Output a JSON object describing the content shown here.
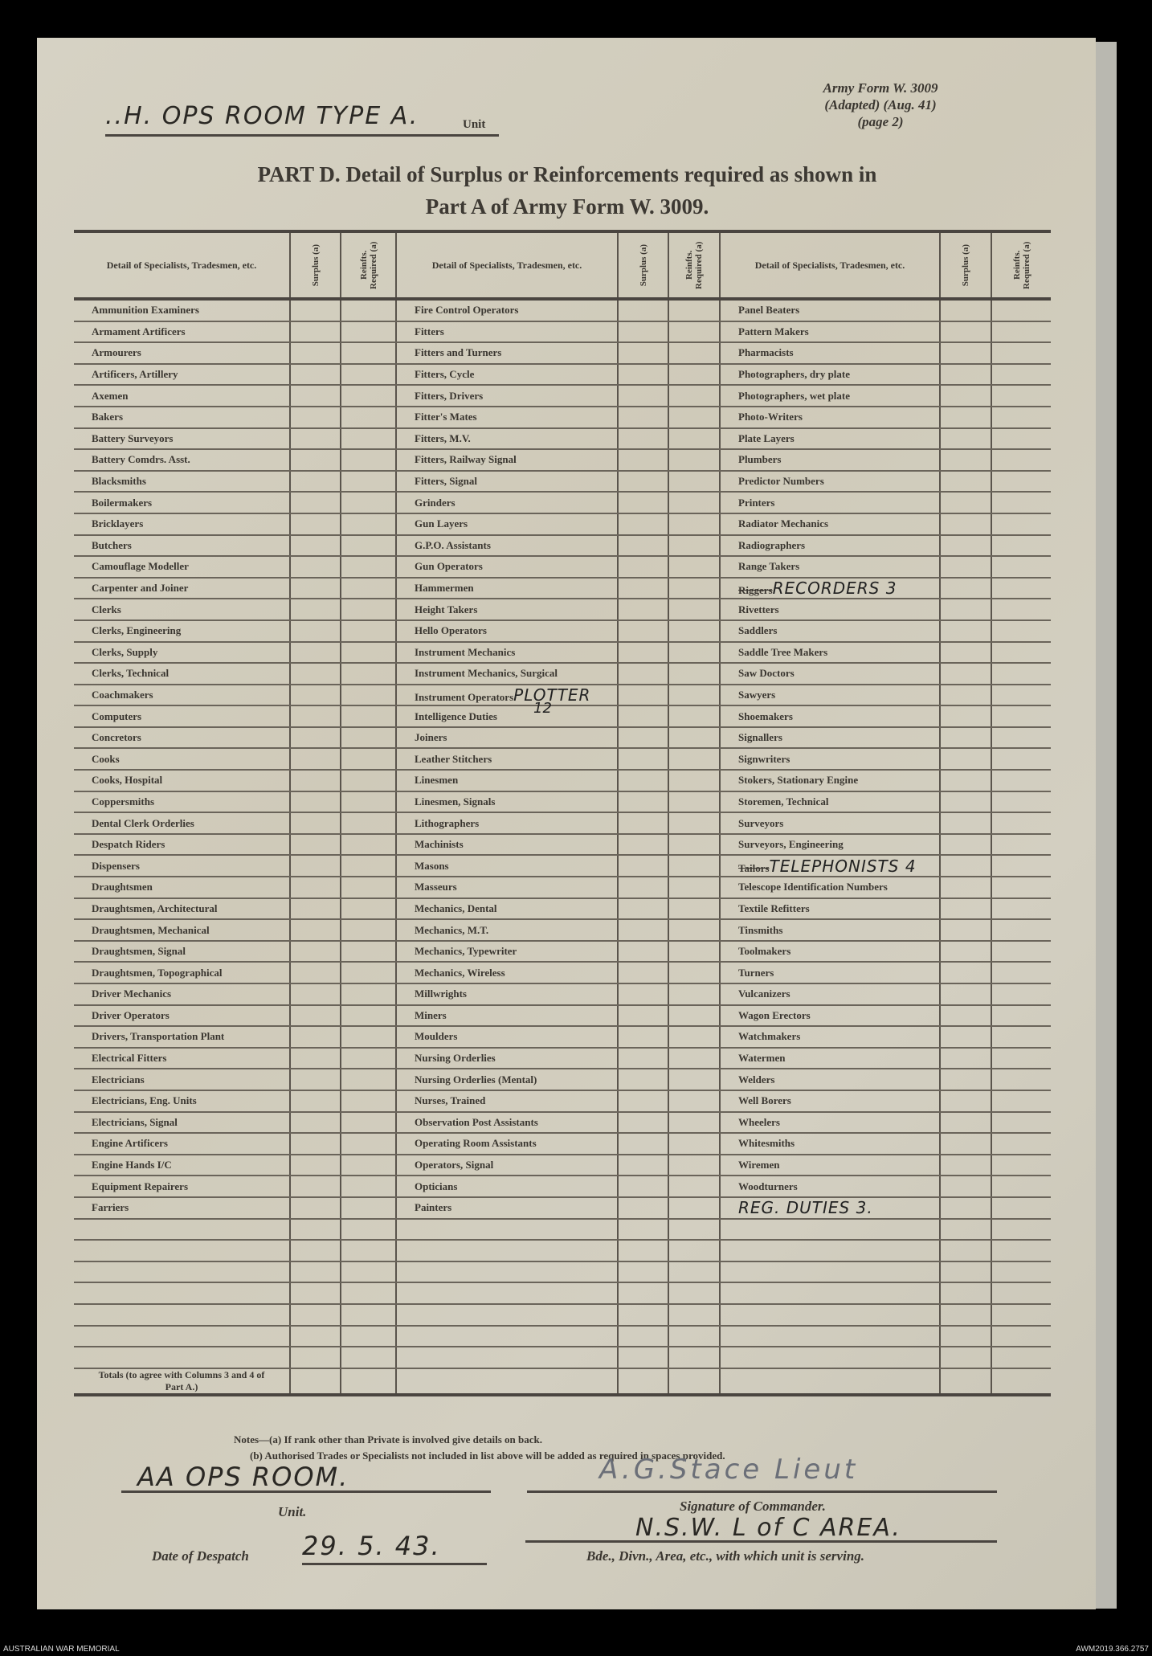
{
  "header": {
    "unit_handwritten": "..H. OPS ROOM TYPE A.",
    "unit_label": "Unit",
    "form_ref": [
      "Army Form W. 3009",
      "(Adapted) (Aug. 41)",
      "(page 2)"
    ],
    "title_line1": "PART D.  Detail of Surplus or Reinforcements required as shown in",
    "title_line2": "Part A of Army Form W. 3009."
  },
  "table": {
    "col_header_detail": "Detail of Specialists, Tradesmen, etc.",
    "col_header_surplus": "Surplus (a)",
    "col_header_reinfts": "Reinfts. Required (a)",
    "rows": [
      [
        {
          "n": "Ammunition Examiners"
        },
        {
          "n": "Fire Control Operators"
        },
        {
          "n": "Panel Beaters"
        }
      ],
      [
        {
          "n": "Armament Artificers"
        },
        {
          "n": "Fitters"
        },
        {
          "n": "Pattern Makers"
        }
      ],
      [
        {
          "n": "Armourers"
        },
        {
          "n": "Fitters and Turners"
        },
        {
          "n": "Pharmacists"
        }
      ],
      [
        {
          "n": "Artificers, Artillery"
        },
        {
          "n": "Fitters, Cycle"
        },
        {
          "n": "Photographers, dry plate"
        }
      ],
      [
        {
          "n": "Axemen"
        },
        {
          "n": "Fitters, Drivers"
        },
        {
          "n": "Photographers, wet plate"
        }
      ],
      [
        {
          "n": "Bakers"
        },
        {
          "n": "Fitter's Mates"
        },
        {
          "n": "Photo-Writers"
        }
      ],
      [
        {
          "n": "Battery Surveyors"
        },
        {
          "n": "Fitters, M.V."
        },
        {
          "n": "Plate Layers"
        }
      ],
      [
        {
          "n": "Battery Comdrs. Asst."
        },
        {
          "n": "Fitters, Railway Signal"
        },
        {
          "n": "Plumbers"
        }
      ],
      [
        {
          "n": "Blacksmiths"
        },
        {
          "n": "Fitters, Signal"
        },
        {
          "n": "Predictor Numbers"
        }
      ],
      [
        {
          "n": "Boilermakers"
        },
        {
          "n": "Grinders"
        },
        {
          "n": "Printers"
        }
      ],
      [
        {
          "n": "Bricklayers"
        },
        {
          "n": "Gun Layers"
        },
        {
          "n": "Radiator Mechanics"
        }
      ],
      [
        {
          "n": "Butchers"
        },
        {
          "n": "G.P.O. Assistants"
        },
        {
          "n": "Radiographers"
        }
      ],
      [
        {
          "n": "Camouflage Modeller"
        },
        {
          "n": "Gun Operators"
        },
        {
          "n": "Range Takers"
        }
      ],
      [
        {
          "n": "Carpenter and Joiner"
        },
        {
          "n": "Hammermen"
        },
        {
          "n": "Riggers",
          "struck": true,
          "hw": "RECORDERS 3"
        }
      ],
      [
        {
          "n": "Clerks"
        },
        {
          "n": "Height Takers"
        },
        {
          "n": "Rivetters"
        }
      ],
      [
        {
          "n": "Clerks, Engineering"
        },
        {
          "n": "Hello Operators"
        },
        {
          "n": "Saddlers"
        }
      ],
      [
        {
          "n": "Clerks, Supply"
        },
        {
          "n": "Instrument Mechanics"
        },
        {
          "n": "Saddle Tree Makers"
        }
      ],
      [
        {
          "n": "Clerks, Technical"
        },
        {
          "n": "Instrument Mechanics, Surgical"
        },
        {
          "n": "Saw Doctors"
        }
      ],
      [
        {
          "n": "Coachmakers"
        },
        {
          "n": "Instrument Operators",
          "hw": "PLOTTER"
        },
        {
          "n": "Sawyers"
        }
      ],
      [
        {
          "n": "Computers"
        },
        {
          "n": "Intelligence Duties",
          "note": "12"
        },
        {
          "n": "Shoemakers"
        }
      ],
      [
        {
          "n": "Concretors"
        },
        {
          "n": "Joiners"
        },
        {
          "n": "Signallers"
        }
      ],
      [
        {
          "n": "Cooks"
        },
        {
          "n": "Leather Stitchers"
        },
        {
          "n": "Signwriters"
        }
      ],
      [
        {
          "n": "Cooks, Hospital"
        },
        {
          "n": "Linesmen"
        },
        {
          "n": "Stokers, Stationary Engine"
        }
      ],
      [
        {
          "n": "Coppersmiths"
        },
        {
          "n": "Linesmen, Signals"
        },
        {
          "n": "Storemen, Technical"
        }
      ],
      [
        {
          "n": "Dental Clerk Orderlies"
        },
        {
          "n": "Lithographers"
        },
        {
          "n": "Surveyors"
        }
      ],
      [
        {
          "n": "Despatch Riders"
        },
        {
          "n": "Machinists"
        },
        {
          "n": "Surveyors, Engineering"
        }
      ],
      [
        {
          "n": "Dispensers"
        },
        {
          "n": "Masons"
        },
        {
          "n": "Tailors",
          "struck": true,
          "hw": "TELEPHONISTS 4"
        }
      ],
      [
        {
          "n": "Draughtsmen"
        },
        {
          "n": "Masseurs"
        },
        {
          "n": "Telescope Identification Numbers"
        }
      ],
      [
        {
          "n": "Draughtsmen, Architectural"
        },
        {
          "n": "Mechanics, Dental"
        },
        {
          "n": "Textile Refitters"
        }
      ],
      [
        {
          "n": "Draughtsmen, Mechanical"
        },
        {
          "n": "Mechanics, M.T."
        },
        {
          "n": "Tinsmiths"
        }
      ],
      [
        {
          "n": "Draughtsmen, Signal"
        },
        {
          "n": "Mechanics, Typewriter"
        },
        {
          "n": "Toolmakers"
        }
      ],
      [
        {
          "n": "Draughtsmen, Topographical"
        },
        {
          "n": "Mechanics, Wireless"
        },
        {
          "n": "Turners"
        }
      ],
      [
        {
          "n": "Driver Mechanics"
        },
        {
          "n": "Millwrights"
        },
        {
          "n": "Vulcanizers"
        }
      ],
      [
        {
          "n": "Driver Operators"
        },
        {
          "n": "Miners"
        },
        {
          "n": "Wagon Erectors"
        }
      ],
      [
        {
          "n": "Drivers, Transportation Plant"
        },
        {
          "n": "Moulders"
        },
        {
          "n": "Watchmakers"
        }
      ],
      [
        {
          "n": "Electrical Fitters"
        },
        {
          "n": "Nursing Orderlies"
        },
        {
          "n": "Watermen"
        }
      ],
      [
        {
          "n": "Electricians"
        },
        {
          "n": "Nursing Orderlies (Mental)"
        },
        {
          "n": "Welders"
        }
      ],
      [
        {
          "n": "Electricians, Eng. Units"
        },
        {
          "n": "Nurses, Trained"
        },
        {
          "n": "Well Borers"
        }
      ],
      [
        {
          "n": "Electricians, Signal"
        },
        {
          "n": "Observation Post Assistants"
        },
        {
          "n": "Wheelers"
        }
      ],
      [
        {
          "n": "Engine Artificers"
        },
        {
          "n": "Operating Room Assistants"
        },
        {
          "n": "Whitesmiths"
        }
      ],
      [
        {
          "n": "Engine Hands I/C"
        },
        {
          "n": "Operators, Signal"
        },
        {
          "n": "Wiremen"
        }
      ],
      [
        {
          "n": "Equipment Repairers"
        },
        {
          "n": "Opticians"
        },
        {
          "n": "Woodturners"
        }
      ],
      [
        {
          "n": "Farriers"
        },
        {
          "n": "Painters"
        },
        {
          "n": "",
          "hw": "REG. DUTIES   3."
        }
      ]
    ],
    "totals_label": "Totals (to agree with Columns 3 and 4 of Part A.)"
  },
  "notes": {
    "a": "Notes—(a) If rank other than Private is involved give details on back.",
    "b": "(b) Authorised Trades or Specialists not included in list above will be added as required in spaces provided."
  },
  "footer_fields": {
    "unit_value": "AA OPS ROOM.",
    "unit_caption": "Unit.",
    "date_caption": "Date of Despatch",
    "date_value": "29. 5. 43.",
    "signature_caption": "Signature of Commander.",
    "signature": "A.G.Stace  Lieut",
    "area_value": "N.S.W.  L of C  AREA.",
    "area_caption": "Bde., Divn., Area, etc., with which unit is serving."
  },
  "credits": {
    "left": "AUSTRALIAN WAR MEMORIAL",
    "right": "AWM2019.366.2757"
  }
}
